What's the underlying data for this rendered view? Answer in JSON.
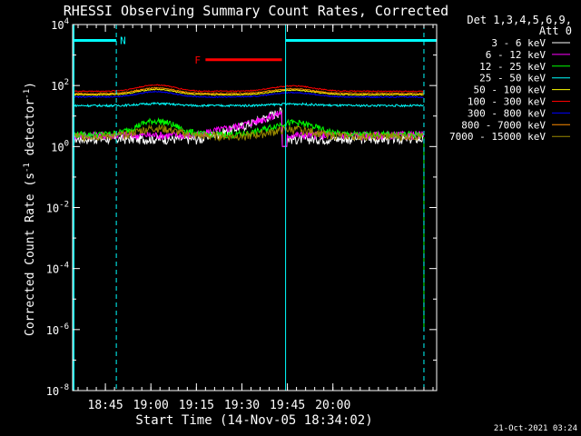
{
  "chart_data": {
    "type": "line",
    "title": "RHESSI Observing Summary Count Rates, Corrected",
    "xlabel": "Start Time (14-Nov-05 18:34:02)",
    "ylabel": "Corrected Count Rate (s⁻¹ detector⁻¹)",
    "ylabel_main": "Corrected Count Rate (s",
    "ylabel_sup1": "-1",
    "ylabel_mid": " detector",
    "ylabel_sup2": "-1",
    "ylabel_end": ")",
    "yscale": "log",
    "xlim_minutes": [
      18.57,
      20.57
    ],
    "ylim": [
      1e-08,
      10000.0
    ],
    "x_ticks": [
      {
        "label": "18:45",
        "minutes": 18.75
      },
      {
        "label": "19:00",
        "minutes": 19.0
      },
      {
        "label": "19:15",
        "minutes": 19.25
      },
      {
        "label": "19:30",
        "minutes": 19.5
      },
      {
        "label": "19:45",
        "minutes": 19.75
      },
      {
        "label": "20:00",
        "minutes": 20.0
      }
    ],
    "y_ticks": [
      {
        "base": "10",
        "exp": "4",
        "value": 10000.0
      },
      {
        "base": "10",
        "exp": "2",
        "value": 100.0
      },
      {
        "base": "10",
        "exp": "0",
        "value": 1.0
      },
      {
        "base": "10",
        "exp": "-2",
        "value": 0.01
      },
      {
        "base": "10",
        "exp": "-4",
        "value": 0.0001
      },
      {
        "base": "10",
        "exp": "-6",
        "value": 1e-06
      },
      {
        "base": "10",
        "exp": "-8",
        "value": 1e-08
      }
    ],
    "legend_header": [
      "Det 1,3,4,5,6,9,",
      "Att 0"
    ],
    "series": [
      {
        "name": "3 - 6 keV",
        "color": "#ffffff"
      },
      {
        "name": "6 - 12 keV",
        "color": "#ff00ff"
      },
      {
        "name": "12 - 25 keV",
        "color": "#00ff00"
      },
      {
        "name": "25 - 50 keV",
        "color": "#00ffff"
      },
      {
        "name": "50 - 100 keV",
        "color": "#ffff00"
      },
      {
        "name": "100 - 300 keV",
        "color": "#ff0000"
      },
      {
        "name": "300 - 800 keV",
        "color": "#0000ff"
      },
      {
        "name": "800 - 7000 keV",
        "color": "#ff8c00"
      },
      {
        "name": "7000 - 15000 keV",
        "color": "#9b8a00"
      }
    ],
    "flags": [
      {
        "label": "N",
        "color": "#00ffff",
        "segments": [
          [
            18.57,
            18.81
          ],
          [
            19.74,
            20.57
          ]
        ],
        "value": 3000
      },
      {
        "label": "F",
        "color": "#ff0000",
        "segments": [
          [
            19.3,
            19.72
          ]
        ],
        "value": 700
      }
    ],
    "marker_lines_minutes": [
      18.81,
      19.74,
      20.5
    ],
    "colors": {
      "background": "#000000",
      "axes": "#ffffff",
      "n_flag": "#00ffff",
      "f_flag": "#ff0000"
    }
  },
  "timestamp": "21-Oct-2021 03:24"
}
